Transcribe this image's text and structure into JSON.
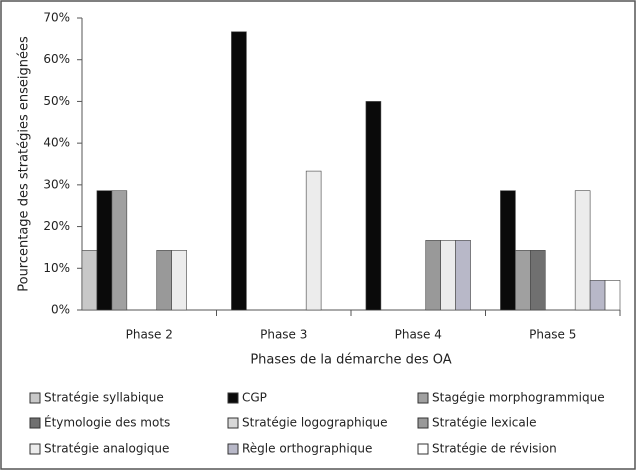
{
  "chart_data": {
    "type": "bar",
    "y_label": "Pourcentage des stratégies enseignées",
    "x_label": "Phases de la démarche des OA",
    "categories": [
      "Phase 2",
      "Phase 3",
      "Phase 4",
      "Phase 5"
    ],
    "ylim": [
      0,
      70
    ],
    "yticks": [
      {
        "value": 0,
        "label": "0%"
      },
      {
        "value": 10,
        "label": "10%"
      },
      {
        "value": 20,
        "label": "20%"
      },
      {
        "value": 30,
        "label": "30%"
      },
      {
        "value": 40,
        "label": "40%"
      },
      {
        "value": 50,
        "label": "50%"
      },
      {
        "value": 60,
        "label": "60%"
      },
      {
        "value": 70,
        "label": "70%"
      }
    ],
    "series": [
      {
        "name": "Stratégie syllabique",
        "color": "#c8c8c8",
        "values": [
          14.3,
          0,
          0,
          0
        ]
      },
      {
        "name": "CGP",
        "color": "#0a0a0a",
        "values": [
          28.6,
          66.7,
          50,
          28.6
        ]
      },
      {
        "name": "Stagégie morphogrammique",
        "color": "#a0a0a0",
        "values": [
          28.6,
          0,
          0,
          14.3
        ]
      },
      {
        "name": "Étymologie des mots",
        "color": "#707070",
        "values": [
          0,
          0,
          0,
          14.3
        ]
      },
      {
        "name": "Stratégie logographique",
        "color": "#d8d8d8",
        "values": [
          0,
          0,
          0,
          0
        ]
      },
      {
        "name": "Stratégie lexicale",
        "color": "#999999",
        "values": [
          14.3,
          0,
          16.7,
          0
        ]
      },
      {
        "name": "Stratégie analogique",
        "color": "#ececec",
        "values": [
          14.3,
          33.3,
          16.7,
          28.6
        ]
      },
      {
        "name": "Règle orthographique",
        "color": "#b8b8c8",
        "values": [
          0,
          0,
          16.7,
          7.1
        ]
      },
      {
        "name": "Stratégie de révision",
        "color": "#ffffff",
        "values": [
          0,
          0,
          0,
          7.1
        ]
      }
    ]
  }
}
